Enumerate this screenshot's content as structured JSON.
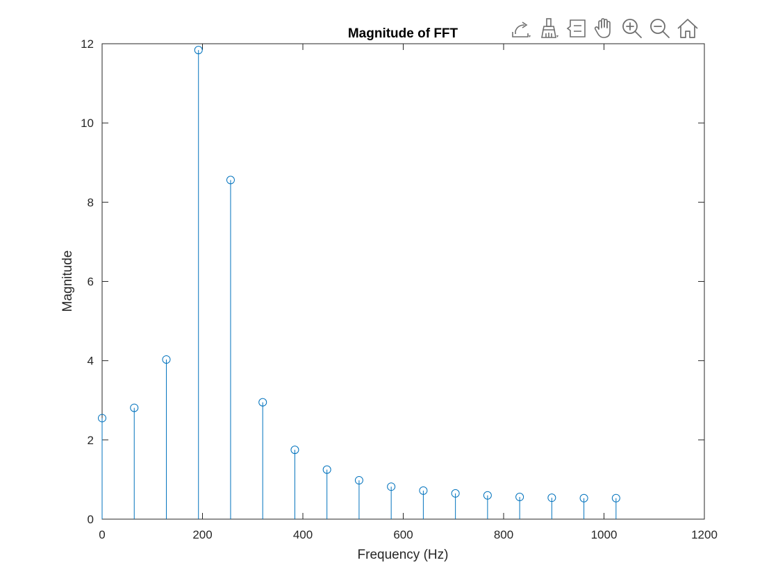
{
  "chart_data": {
    "type": "stem",
    "title": "Magnitude of FFT",
    "xlabel": "Frequency (Hz)",
    "ylabel": "Magnitude",
    "xlim": [
      0,
      1200
    ],
    "ylim": [
      0,
      12
    ],
    "xticks": [
      0,
      200,
      400,
      600,
      800,
      1000,
      1200
    ],
    "yticks": [
      0,
      2,
      4,
      6,
      8,
      10,
      12
    ],
    "grid": false,
    "series": [
      {
        "color": "#0072BD",
        "marker": "circle",
        "x": [
          0,
          64,
          128,
          192,
          256,
          320,
          384,
          448,
          512,
          576,
          640,
          704,
          768,
          832,
          896,
          960,
          1024
        ],
        "y": [
          2.55,
          2.81,
          4.03,
          11.84,
          8.56,
          2.95,
          1.75,
          1.25,
          0.98,
          0.82,
          0.72,
          0.65,
          0.6,
          0.56,
          0.54,
          0.53,
          0.53
        ]
      }
    ]
  },
  "toolbar": {
    "buttons": [
      {
        "name": "export-icon"
      },
      {
        "name": "brush-icon"
      },
      {
        "name": "data-tips-icon"
      },
      {
        "name": "pan-hand-icon"
      },
      {
        "name": "zoom-in-icon"
      },
      {
        "name": "zoom-out-icon"
      },
      {
        "name": "home-icon"
      }
    ],
    "icon_color": "#6e6e6e"
  },
  "colors": {
    "axes": "#262626",
    "background": "#ffffff",
    "stem": "#0072BD"
  }
}
